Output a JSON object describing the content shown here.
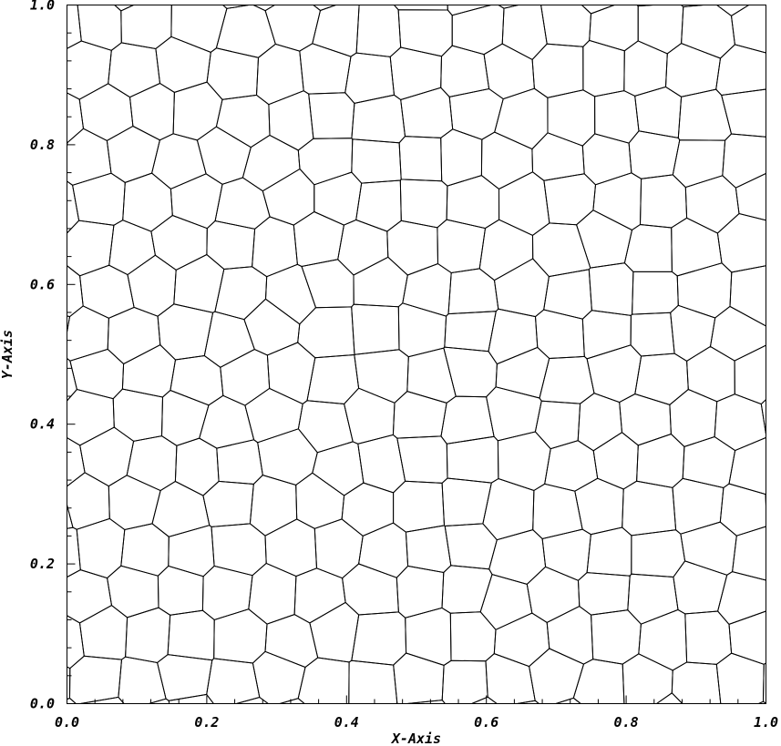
{
  "chart_data": {
    "type": "mesh",
    "x_axis": {
      "label": "X-Axis",
      "range": [
        0.0,
        1.0
      ],
      "major_ticks": [
        "0.0",
        "0.2",
        "0.4",
        "0.6",
        "0.8",
        "1.0"
      ],
      "minor_per_major": 5
    },
    "y_axis": {
      "label": "Y-Axis",
      "range": [
        0.0,
        1.0
      ],
      "major_ticks": [
        "0.0",
        "0.2",
        "0.4",
        "0.6",
        "0.8",
        "1.0"
      ],
      "minor_per_major": 5
    },
    "mesh": {
      "kind": "centroidal voronoi (polygonal cells)",
      "approx_cell_columns": 15,
      "approx_cell_rows": 16,
      "edge_color": "#000000"
    }
  }
}
